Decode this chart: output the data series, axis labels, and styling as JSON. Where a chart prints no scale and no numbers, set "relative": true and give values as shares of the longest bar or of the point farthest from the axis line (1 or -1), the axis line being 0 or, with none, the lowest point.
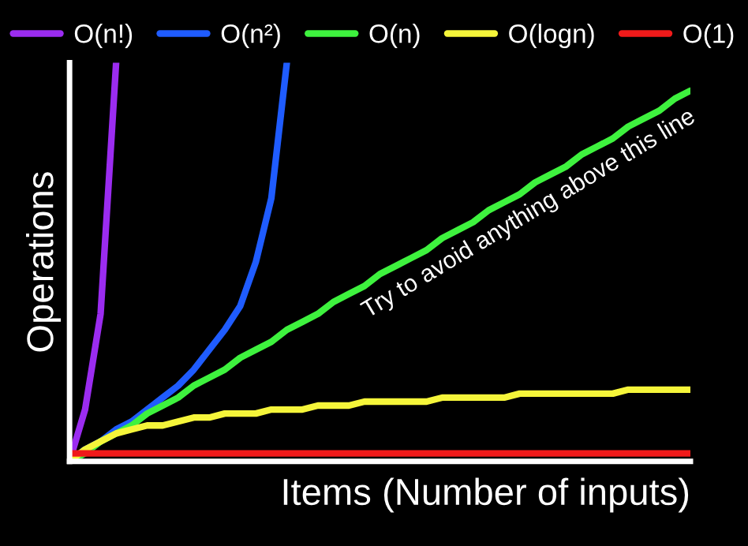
{
  "chart_data": {
    "type": "line",
    "relative": true,
    "xlabel": "Items (Number of inputs)",
    "ylabel": "Operations",
    "legend": "top",
    "grid": false,
    "annotations": [
      "Try to avoid anything above this line"
    ],
    "categories": [
      null,
      null,
      null,
      null,
      null,
      null,
      null,
      null,
      null,
      null,
      null,
      null,
      null,
      null,
      null,
      null,
      null,
      null,
      null,
      null,
      null,
      null,
      null,
      null,
      null,
      null,
      null,
      null,
      null,
      null,
      null,
      null,
      null,
      null,
      null,
      null,
      null,
      null,
      null,
      null,
      null
    ],
    "series": [
      {
        "name": "O(n!)",
        "color": "#9b2cf0",
        "values": [
          0,
          0.13,
          0.37,
          1.0,
          null,
          null,
          null,
          null,
          null,
          null,
          null,
          null,
          null,
          null,
          null,
          null,
          null,
          null,
          null,
          null,
          null,
          null,
          null,
          null,
          null,
          null,
          null,
          null,
          null,
          null,
          null,
          null,
          null,
          null,
          null,
          null,
          null,
          null,
          null,
          null,
          null
        ]
      },
      {
        "name": "O(n²)",
        "color": "#1f5cff",
        "values": [
          0,
          0.03,
          0.05,
          0.08,
          0.1,
          0.13,
          0.16,
          0.19,
          0.23,
          0.28,
          0.33,
          0.39,
          0.5,
          0.66,
          1.0,
          null,
          null,
          null,
          null,
          null,
          null,
          null,
          null,
          null,
          null,
          null,
          null,
          null,
          null,
          null,
          null,
          null,
          null,
          null,
          null,
          null,
          null,
          null,
          null,
          null,
          null
        ]
      },
      {
        "name": "O(n)",
        "color": "#3ef23e",
        "values": [
          0,
          0.02,
          0.05,
          0.07,
          0.09,
          0.12,
          0.14,
          0.16,
          0.19,
          0.21,
          0.23,
          0.26,
          0.28,
          0.3,
          0.33,
          0.35,
          0.37,
          0.4,
          0.42,
          0.44,
          0.47,
          0.49,
          0.51,
          0.53,
          0.56,
          0.58,
          0.6,
          0.63,
          0.65,
          0.67,
          0.7,
          0.72,
          0.74,
          0.77,
          0.79,
          0.81,
          0.84,
          0.86,
          0.88,
          0.91,
          0.93
        ]
      },
      {
        "name": "O(logn)",
        "color": "#f5f53a",
        "values": [
          0,
          0.03,
          0.05,
          0.07,
          0.08,
          0.09,
          0.09,
          0.1,
          0.11,
          0.11,
          0.12,
          0.12,
          0.12,
          0.13,
          0.13,
          0.13,
          0.14,
          0.14,
          0.14,
          0.15,
          0.15,
          0.15,
          0.15,
          0.15,
          0.16,
          0.16,
          0.16,
          0.16,
          0.16,
          0.17,
          0.17,
          0.17,
          0.17,
          0.17,
          0.17,
          0.17,
          0.18,
          0.18,
          0.18,
          0.18,
          0.18
        ]
      },
      {
        "name": "O(1)",
        "color": "#f01a1a",
        "values": [
          0.02,
          0.02,
          0.02,
          0.02,
          0.02,
          0.02,
          0.02,
          0.02,
          0.02,
          0.02,
          0.02,
          0.02,
          0.02,
          0.02,
          0.02,
          0.02,
          0.02,
          0.02,
          0.02,
          0.02,
          0.02,
          0.02,
          0.02,
          0.02,
          0.02,
          0.02,
          0.02,
          0.02,
          0.02,
          0.02,
          0.02,
          0.02,
          0.02,
          0.02,
          0.02,
          0.02,
          0.02,
          0.02,
          0.02,
          0.02,
          0.02
        ]
      }
    ]
  }
}
